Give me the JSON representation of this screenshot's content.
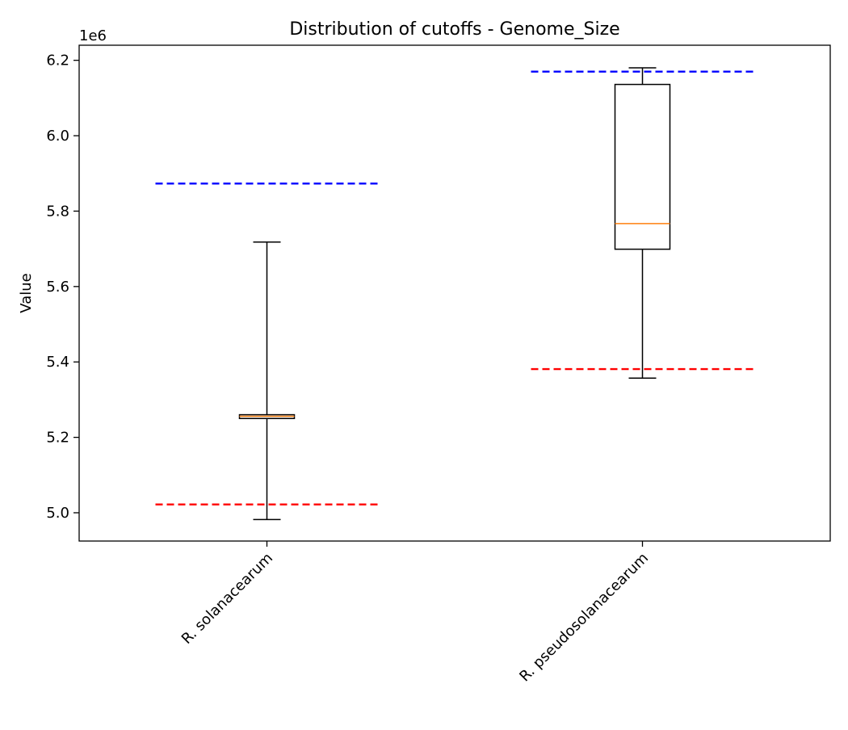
{
  "chart_data": {
    "type": "box",
    "title": "Distribution of cutoffs - Genome_Size",
    "ylabel": "Value",
    "xlabel": "",
    "y_offset_label": "1e6",
    "ylim": [
      4.925,
      6.24
    ],
    "yticks": [
      5.0,
      5.2,
      5.4,
      5.6,
      5.8,
      6.0,
      6.2
    ],
    "ytick_labels": [
      "5.0",
      "5.2",
      "5.4",
      "5.6",
      "5.8",
      "6.0",
      "6.2"
    ],
    "categories": [
      "R. solanacearum",
      "R. pseudosolanacearum"
    ],
    "boxes": [
      {
        "whisker_low": 4.982,
        "q1": 5.25,
        "median": 5.256,
        "q3": 5.26,
        "whisker_high": 5.718,
        "lower_cutoff": 5.022,
        "upper_cutoff": 5.873
      },
      {
        "whisker_low": 5.357,
        "q1": 5.699,
        "median": 5.767,
        "q3": 6.136,
        "whisker_high": 6.18,
        "lower_cutoff": 5.381,
        "upper_cutoff": 6.17
      }
    ],
    "grid": false,
    "colors": {
      "box": "#000000",
      "median": "#ff7f0e",
      "lower_cutoff": "#ff0000",
      "upper_cutoff": "#0000ff"
    }
  }
}
